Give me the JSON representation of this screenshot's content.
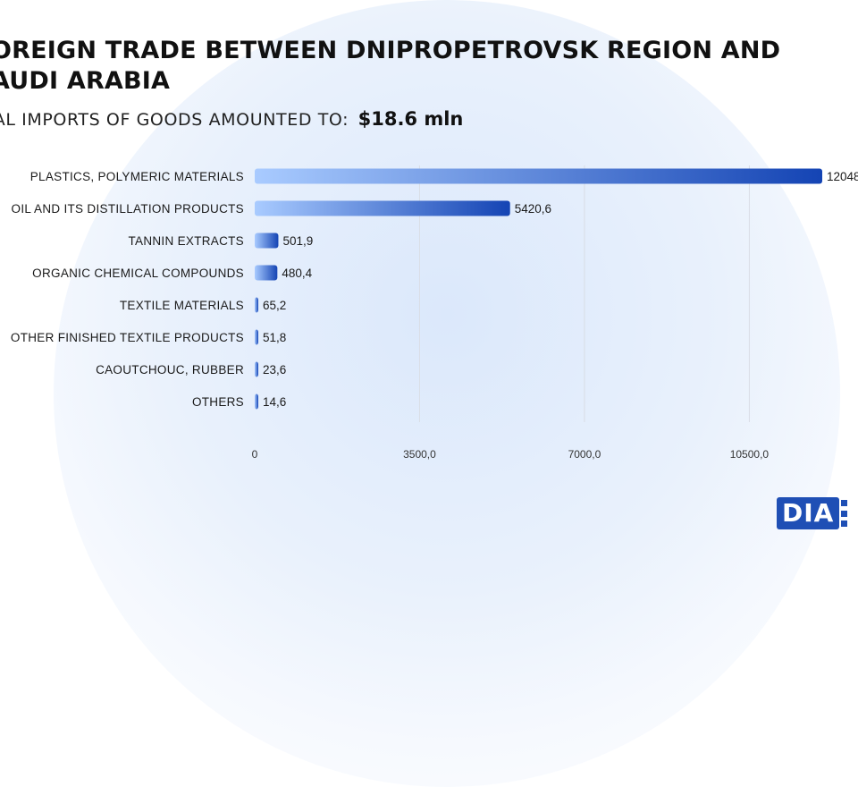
{
  "title": "OREIGN TRADE BETWEEN DNIPROPETROVSK REGION AND\nAUDI ARABIA",
  "subtitle": {
    "text": "TAL IMPORTS OF GOODS AMOUNTED TO:",
    "value": "$18.6  mln"
  },
  "logo_text": "DIA",
  "colors": {
    "bar_start": "#a9cbff",
    "bar_end": "#1444b4",
    "grid": "#d9dde6",
    "logo": "#1f4fb5"
  },
  "chart_data": {
    "type": "bar",
    "orientation": "horizontal",
    "categories": [
      "PLASTICS, POLYMERIC MATERIALS",
      "OIL AND ITS DISTILLATION PRODUCTS",
      "TANNIN EXTRACTS",
      "ORGANIC CHEMICAL COMPOUNDS",
      "TEXTILE MATERIALS",
      "OTHER FINISHED TEXTILE PRODUCTS",
      "CAOUTCHOUC, RUBBER",
      "OTHERS"
    ],
    "values": [
      12048,
      5420.6,
      501.9,
      480.4,
      65.2,
      51.8,
      23.6,
      14.6
    ],
    "value_labels": [
      "12048",
      "5420,6",
      "501,9",
      "480,4",
      "65,2",
      "51,8",
      "23,6",
      "14,6"
    ],
    "x_ticks": [
      0,
      3500,
      7000,
      10500
    ],
    "x_tick_labels": [
      "0",
      "3500,0",
      "7000,0",
      "10500,0"
    ],
    "xlim": [
      0,
      12048
    ],
    "grid": true,
    "xlabel": "",
    "ylabel": ""
  }
}
